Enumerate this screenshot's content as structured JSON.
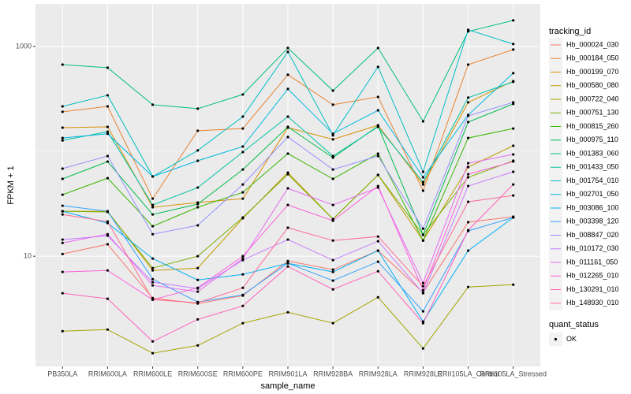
{
  "chart_data": {
    "type": "line",
    "x_label": "sample_name",
    "y_label": "FPKM + 1",
    "log_y": true,
    "grid": true,
    "ylim": [
      0.89,
      2540
    ],
    "yticks": [
      10,
      1000
    ],
    "minor_yticks": [
      1,
      100
    ],
    "legend_position": "right",
    "legend_title": "tracking_id",
    "point_legend_title": "quant_status",
    "point_legend_label": "OK",
    "point_color": "#000000",
    "panel_color": "#EBEBEB",
    "categories": [
      "PB350LA",
      "RRIM600LA",
      "RRIM600LE",
      "RRIM600SE",
      "RRIM600PE",
      "RRIM901LA",
      "RRIM928BA",
      "RRIM928LA",
      "RRIM928LE",
      "RRII105LA_Control",
      "RRII105LA_Stressed"
    ],
    "series": [
      {
        "name": "Hb_000024_030",
        "color": "#F8766D",
        "values": [
          10.5,
          13.0,
          3.99,
          3.54,
          4.21,
          9.0,
          7.45,
          11.3,
          4.51,
          21.1,
          23.8
        ]
      },
      {
        "name": "Hb_000184_050",
        "color": "#EA8331",
        "values": [
          238,
          268,
          35.4,
          157,
          165,
          537,
          278,
          330,
          42.1,
          671,
          933
        ]
      },
      {
        "name": "Hb_000199_070",
        "color": "#D89000",
        "values": [
          168,
          171,
          29.3,
          32.5,
          35.4,
          168,
          130,
          177,
          48.3,
          293,
          467
        ]
      },
      {
        "name": "Hb_000580_080",
        "color": "#C09B00",
        "values": [
          26.8,
          26.8,
          7.32,
          7.71,
          23.0,
          62.7,
          22.6,
          59.5,
          14.1,
          70.8,
          113
        ]
      },
      {
        "name": "Hb_000722_040",
        "color": "#A3A500",
        "values": [
          1.93,
          2.0,
          1.19,
          1.41,
          2.3,
          2.92,
          2.3,
          4.06,
          1.32,
          5.09,
          5.36
        ]
      },
      {
        "name": "Hb_000751_130",
        "color": "#7CAE00",
        "values": [
          26.8,
          26.4,
          7.71,
          10,
          23.4,
          60.5,
          22.6,
          59.5,
          16.0,
          56.5,
          81.3
        ]
      },
      {
        "name": "Hb_000815_260",
        "color": "#39B600",
        "values": [
          38.6,
          55.5,
          19.3,
          29.3,
          40.6,
          95.1,
          54.6,
          95.1,
          14.1,
          134,
          165
        ]
      },
      {
        "name": "Hb_000975_110",
        "color": "#00BB4E",
        "values": [
          54.6,
          79.8,
          25.0,
          31.4,
          67.1,
          171,
          87.1,
          174,
          16.0,
          190,
          283
        ]
      },
      {
        "name": "Hb_001383_060",
        "color": "#00BF7D",
        "values": [
          671,
          627,
          278,
          255,
          348,
          966,
          379,
          966,
          193,
          1390,
          1770
        ]
      },
      {
        "name": "Hb_001433_050",
        "color": "#00C1A3",
        "values": [
          127,
          154,
          30.8,
          45.1,
          98.4,
          214,
          90.2,
          171,
          50.9,
          325,
          459
        ]
      },
      {
        "name": "Hb_001754_010",
        "color": "#00BFC4",
        "values": [
          268,
          342,
          57.5,
          102,
          214,
          887,
          142,
          638,
          63.8,
          1440,
          1054
        ]
      },
      {
        "name": "Hb_002701_050",
        "color": "#00BAE0",
        "values": [
          134,
          147,
          57.5,
          81.3,
          111,
          393,
          147,
          246,
          56.5,
          222,
          556
        ]
      },
      {
        "name": "Hb_003086_100",
        "color": "#00B0F6",
        "values": [
          26.8,
          20.7,
          9.5,
          5.94,
          6.71,
          8.56,
          7.08,
          11.3,
          2.38,
          11.3,
          23.4
        ]
      },
      {
        "name": "Hb_003398_120",
        "color": "#35A2FF",
        "values": [
          30.3,
          26.8,
          6.05,
          3.66,
          4.28,
          8.56,
          5.85,
          8.86,
          2.98,
          17.4,
          23.4
        ]
      },
      {
        "name": "Hb_008847_020",
        "color": "#9590FF",
        "values": [
          68.4,
          90.2,
          16.2,
          19.7,
          48.3,
          137,
          67.1,
          90.2,
          18.3,
          218,
          293
        ]
      },
      {
        "name": "Hb_010172_030",
        "color": "#C77CFF",
        "values": [
          14.4,
          15.7,
          5.65,
          4.92,
          9.17,
          14.4,
          9.17,
          13.9,
          4.44,
          46.7,
          63.8
        ]
      },
      {
        "name": "Hb_011161_050",
        "color": "#E76BF3",
        "values": [
          13.4,
          16.2,
          5.27,
          4.59,
          9.5,
          44.4,
          30.8,
          45.1,
          5.55,
          77.1,
          93.3
        ]
      },
      {
        "name": "Hb_012265_010",
        "color": "#FA62DB",
        "values": [
          7.08,
          7.32,
          3.85,
          5.0,
          10,
          30.8,
          21.8,
          46.7,
          4.75,
          60.5,
          79.8
        ]
      },
      {
        "name": "Hb_130291_010",
        "color": "#FF62BC",
        "values": [
          4.44,
          3.93,
          1.54,
          2.5,
          3.36,
          7.98,
          4.83,
          7.19,
          2.3,
          17.7,
          48.3
        ]
      },
      {
        "name": "Hb_148930_010",
        "color": "#FF6C91",
        "values": [
          25.0,
          21.4,
          3.85,
          3.6,
          5.0,
          18.7,
          14.1,
          15.4,
          5.18,
          33.0,
          37.9
        ]
      }
    ]
  }
}
